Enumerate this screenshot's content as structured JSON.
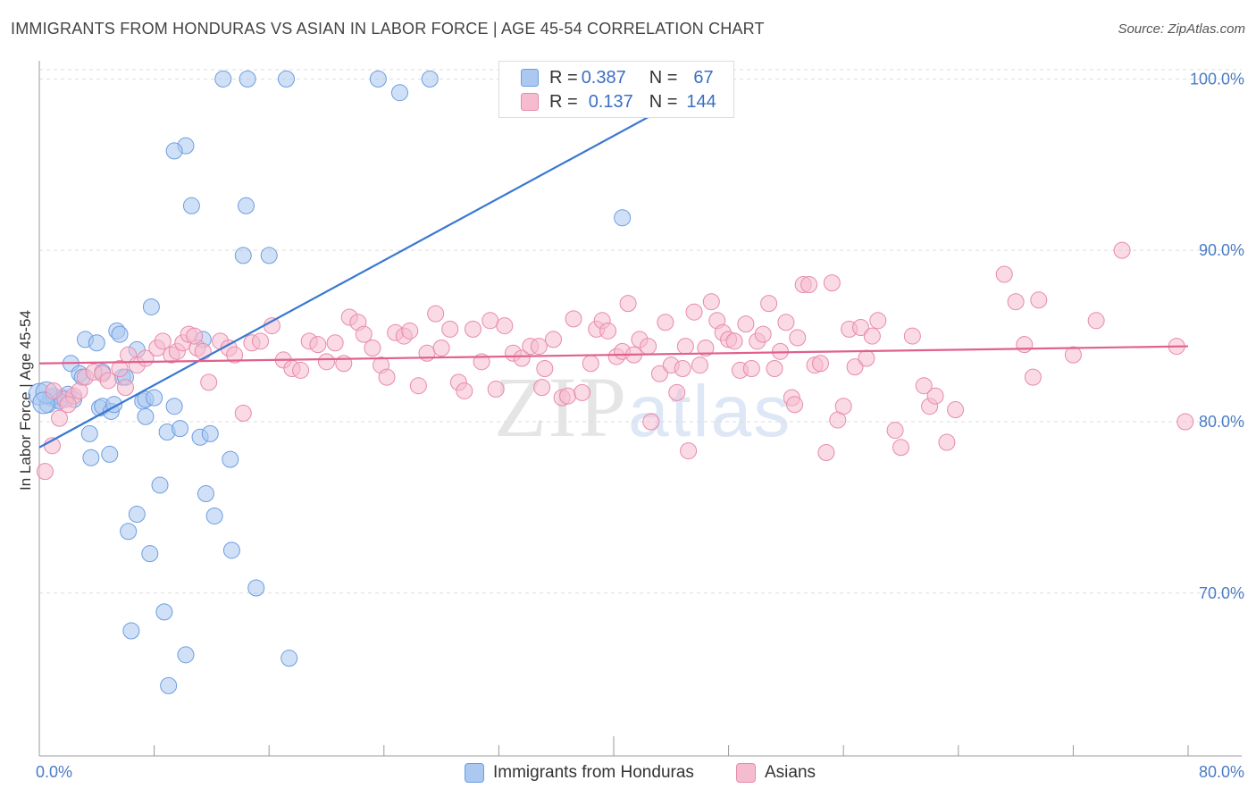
{
  "header": {
    "title": "IMMIGRANTS FROM HONDURAS VS ASIAN IN LABOR FORCE | AGE 45-54 CORRELATION CHART",
    "source": "Source: ZipAtlas.com"
  },
  "legend": {
    "series1": {
      "r_label": "R =",
      "r_value": "0.387",
      "n_label": "N =",
      "n_value": "67"
    },
    "series2": {
      "r_label": "R =",
      "r_value": "0.137",
      "n_label": "N =",
      "n_value": "144"
    }
  },
  "bottom_legend": {
    "series1": "Immigrants from Honduras",
    "series2": "Asians"
  },
  "watermark": {
    "zip": "ZIP",
    "atlas": "atlas"
  },
  "colors": {
    "blue_fill": "#aac8f0",
    "blue_stroke": "#6d9de0",
    "blue_line": "#3a78d0",
    "pink_fill": "#f5bcd0",
    "pink_stroke": "#e88aaa",
    "pink_line": "#e06090",
    "tick_text": "#4a7cc7",
    "grid": "#dddddd"
  },
  "chart_data": {
    "type": "scatter",
    "title": "IMMIGRANTS FROM HONDURAS VS ASIAN IN LABOR FORCE | AGE 45-54 CORRELATION CHART",
    "xlabel": "",
    "ylabel": "In Labor Force | Age 45-54",
    "xlim": [
      0,
      80
    ],
    "ylim": [
      60.5,
      102
    ],
    "x_tick_labels": [
      {
        "value": 0,
        "label": "0.0%"
      },
      {
        "value": 80,
        "label": "80.0%"
      }
    ],
    "y_tick_labels": [
      {
        "value": 100,
        "label": "100.0%"
      },
      {
        "value": 90,
        "label": "90.0%"
      },
      {
        "value": 80,
        "label": "80.0%"
      },
      {
        "value": 70,
        "label": "70.0%"
      }
    ],
    "series": [
      {
        "name": "Immigrants from Honduras",
        "r": 0.387,
        "n": 67,
        "trend": {
          "x": [
            0.0,
            47.3
          ],
          "y": [
            78.5,
            100.0
          ]
        },
        "points": [
          [
            12.8,
            100
          ],
          [
            14.5,
            100
          ],
          [
            17.2,
            100
          ],
          [
            23.6,
            100
          ],
          [
            27.2,
            100
          ],
          [
            25.1,
            99.2
          ],
          [
            10.2,
            96.1
          ],
          [
            9.4,
            95.8
          ],
          [
            10.6,
            92.6
          ],
          [
            14.4,
            92.6
          ],
          [
            40.6,
            91.9
          ],
          [
            14.2,
            89.7
          ],
          [
            16.0,
            89.7
          ],
          [
            7.8,
            86.7
          ],
          [
            5.4,
            85.3
          ],
          [
            5.6,
            85.1
          ],
          [
            3.2,
            84.8
          ],
          [
            4.0,
            84.6
          ],
          [
            11.4,
            84.8
          ],
          [
            6.8,
            84.2
          ],
          [
            2.2,
            83.4
          ],
          [
            2.8,
            82.8
          ],
          [
            3.0,
            82.6
          ],
          [
            4.4,
            82.9
          ],
          [
            5.8,
            82.6
          ],
          [
            6.0,
            82.6
          ],
          [
            0.0,
            81.6
          ],
          [
            0.8,
            81.4
          ],
          [
            1.2,
            81.3
          ],
          [
            1.6,
            81.4
          ],
          [
            2.0,
            81.6
          ],
          [
            2.4,
            81.3
          ],
          [
            0.6,
            81.0
          ],
          [
            1.0,
            81.5
          ],
          [
            1.4,
            81.2
          ],
          [
            7.2,
            81.2
          ],
          [
            7.4,
            81.3
          ],
          [
            8.0,
            81.4
          ],
          [
            4.2,
            80.8
          ],
          [
            4.4,
            80.9
          ],
          [
            5.0,
            80.6
          ],
          [
            5.2,
            81.0
          ],
          [
            9.4,
            80.9
          ],
          [
            7.4,
            80.3
          ],
          [
            8.9,
            79.4
          ],
          [
            9.8,
            79.6
          ],
          [
            11.2,
            79.1
          ],
          [
            11.9,
            79.3
          ],
          [
            3.5,
            79.3
          ],
          [
            3.6,
            77.9
          ],
          [
            4.9,
            78.1
          ],
          [
            13.3,
            77.8
          ],
          [
            8.4,
            76.3
          ],
          [
            11.6,
            75.8
          ],
          [
            6.8,
            74.6
          ],
          [
            12.2,
            74.5
          ],
          [
            6.2,
            73.6
          ],
          [
            7.7,
            72.3
          ],
          [
            13.4,
            72.5
          ],
          [
            15.1,
            70.3
          ],
          [
            8.7,
            68.9
          ],
          [
            6.4,
            67.8
          ],
          [
            10.2,
            66.4
          ],
          [
            17.4,
            66.2
          ],
          [
            9.0,
            64.6
          ],
          [
            0.5,
            81.7
          ],
          [
            0.3,
            81.1
          ]
        ]
      },
      {
        "name": "Asians",
        "r": 0.137,
        "n": 144,
        "trend": {
          "x": [
            0.0,
            80.0
          ],
          "y": [
            83.4,
            84.4
          ]
        },
        "points": [
          [
            0.4,
            77.1
          ],
          [
            0.9,
            78.6
          ],
          [
            1.4,
            80.2
          ],
          [
            1.8,
            81.3
          ],
          [
            2.4,
            81.5
          ],
          [
            2.8,
            81.8
          ],
          [
            3.2,
            82.6
          ],
          [
            3.8,
            82.9
          ],
          [
            4.4,
            82.8
          ],
          [
            4.8,
            82.4
          ],
          [
            5.6,
            83.1
          ],
          [
            6.2,
            83.9
          ],
          [
            6.8,
            83.3
          ],
          [
            7.4,
            83.7
          ],
          [
            8.2,
            84.3
          ],
          [
            8.6,
            84.7
          ],
          [
            9.2,
            83.9
          ],
          [
            9.6,
            84.1
          ],
          [
            10.0,
            84.6
          ],
          [
            10.4,
            85.1
          ],
          [
            11.0,
            84.3
          ],
          [
            11.4,
            84.1
          ],
          [
            11.8,
            82.3
          ],
          [
            12.6,
            84.7
          ],
          [
            13.2,
            84.3
          ],
          [
            13.6,
            83.9
          ],
          [
            14.2,
            80.5
          ],
          [
            14.8,
            84.6
          ],
          [
            15.4,
            84.7
          ],
          [
            16.2,
            85.6
          ],
          [
            17.0,
            83.6
          ],
          [
            17.6,
            83.1
          ],
          [
            18.2,
            83.0
          ],
          [
            18.8,
            84.7
          ],
          [
            19.4,
            84.5
          ],
          [
            20.0,
            83.5
          ],
          [
            20.6,
            84.6
          ],
          [
            21.2,
            83.4
          ],
          [
            21.6,
            86.1
          ],
          [
            22.2,
            85.8
          ],
          [
            22.6,
            85.1
          ],
          [
            23.2,
            84.3
          ],
          [
            23.8,
            83.3
          ],
          [
            24.2,
            82.6
          ],
          [
            24.8,
            85.2
          ],
          [
            25.4,
            85.0
          ],
          [
            25.8,
            85.3
          ],
          [
            26.4,
            82.1
          ],
          [
            27.0,
            84.0
          ],
          [
            27.6,
            86.3
          ],
          [
            28.0,
            84.3
          ],
          [
            28.6,
            85.4
          ],
          [
            29.2,
            82.3
          ],
          [
            29.6,
            81.8
          ],
          [
            30.2,
            85.4
          ],
          [
            30.8,
            83.5
          ],
          [
            31.4,
            85.9
          ],
          [
            31.8,
            81.9
          ],
          [
            32.4,
            85.6
          ],
          [
            33.0,
            84.0
          ],
          [
            33.6,
            83.7
          ],
          [
            34.2,
            84.4
          ],
          [
            34.8,
            84.4
          ],
          [
            35.2,
            83.1
          ],
          [
            35.8,
            84.8
          ],
          [
            36.4,
            81.4
          ],
          [
            36.8,
            81.5
          ],
          [
            37.2,
            86.0
          ],
          [
            37.8,
            81.7
          ],
          [
            38.4,
            83.4
          ],
          [
            38.8,
            85.4
          ],
          [
            39.2,
            85.9
          ],
          [
            39.6,
            85.3
          ],
          [
            40.2,
            83.8
          ],
          [
            40.6,
            84.1
          ],
          [
            41.0,
            86.9
          ],
          [
            41.4,
            83.9
          ],
          [
            41.8,
            84.8
          ],
          [
            42.4,
            84.4
          ],
          [
            42.6,
            80.0
          ],
          [
            43.2,
            82.8
          ],
          [
            43.6,
            85.8
          ],
          [
            44.0,
            83.3
          ],
          [
            44.4,
            81.7
          ],
          [
            44.8,
            83.1
          ],
          [
            45.2,
            78.3
          ],
          [
            45.6,
            86.4
          ],
          [
            46.0,
            83.3
          ],
          [
            46.4,
            84.3
          ],
          [
            46.8,
            87.0
          ],
          [
            47.2,
            85.9
          ],
          [
            47.6,
            85.2
          ],
          [
            48.0,
            84.8
          ],
          [
            48.4,
            84.7
          ],
          [
            48.8,
            83.0
          ],
          [
            49.2,
            85.7
          ],
          [
            49.6,
            83.1
          ],
          [
            50.0,
            84.7
          ],
          [
            50.4,
            85.1
          ],
          [
            50.8,
            86.9
          ],
          [
            51.2,
            83.1
          ],
          [
            51.6,
            84.1
          ],
          [
            52.0,
            85.8
          ],
          [
            52.4,
            81.4
          ],
          [
            52.8,
            84.9
          ],
          [
            53.2,
            88.0
          ],
          [
            53.6,
            88.0
          ],
          [
            54.0,
            83.3
          ],
          [
            54.4,
            83.4
          ],
          [
            54.8,
            78.2
          ],
          [
            55.2,
            88.1
          ],
          [
            55.6,
            80.1
          ],
          [
            56.0,
            80.9
          ],
          [
            56.4,
            85.4
          ],
          [
            56.8,
            83.2
          ],
          [
            57.2,
            85.5
          ],
          [
            57.6,
            83.7
          ],
          [
            58.0,
            85.0
          ],
          [
            58.4,
            85.9
          ],
          [
            59.6,
            79.5
          ],
          [
            60.0,
            78.5
          ],
          [
            60.8,
            85.0
          ],
          [
            61.6,
            82.1
          ],
          [
            62.0,
            80.9
          ],
          [
            62.4,
            81.5
          ],
          [
            63.2,
            78.8
          ],
          [
            63.8,
            80.7
          ],
          [
            67.2,
            88.6
          ],
          [
            68.0,
            87.0
          ],
          [
            68.6,
            84.5
          ],
          [
            69.2,
            82.6
          ],
          [
            69.6,
            87.1
          ],
          [
            72.0,
            83.9
          ],
          [
            73.6,
            85.9
          ],
          [
            75.4,
            90.0
          ],
          [
            79.2,
            84.4
          ],
          [
            79.8,
            80.0
          ],
          [
            52.6,
            81.0
          ],
          [
            1.0,
            81.8
          ],
          [
            2.0,
            81.0
          ],
          [
            6.0,
            82.0
          ],
          [
            10.8,
            85.0
          ],
          [
            35.0,
            82.0
          ],
          [
            45.0,
            84.4
          ]
        ]
      }
    ]
  }
}
